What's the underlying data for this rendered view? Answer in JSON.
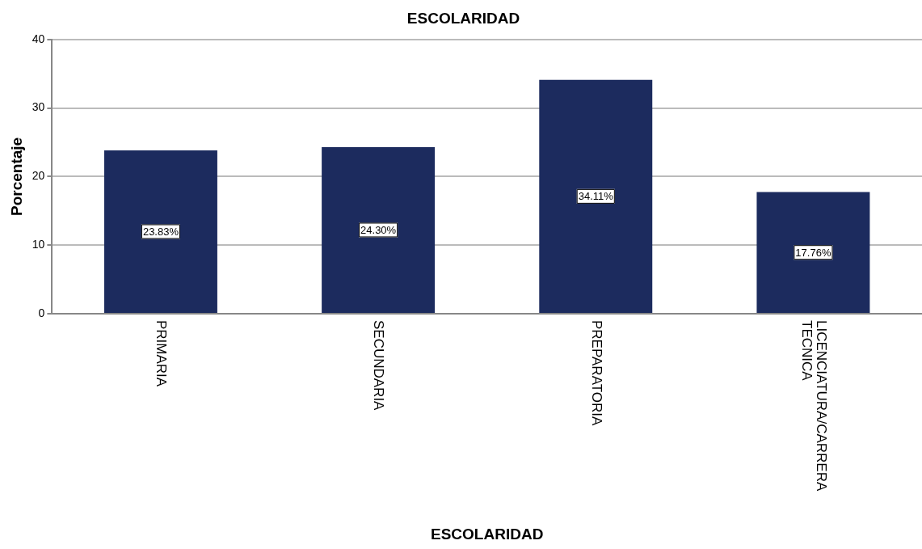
{
  "chart_data": {
    "type": "bar",
    "title": "ESCOLARIDAD",
    "xlabel": "ESCOLARIDAD",
    "ylabel": "Porcentaje",
    "categories": [
      "PRIMARIA",
      "SECUNDARIA",
      "PREPARATORIA",
      "LICENCIATURA/CARRERA TECNICA"
    ],
    "values": [
      23.83,
      24.3,
      34.11,
      17.76
    ],
    "value_labels": [
      "23.83%",
      "24.30%",
      "34.11%",
      "17.76%"
    ],
    "color": "#1c2b5e",
    "ylim": [
      0,
      40
    ],
    "yticks": [
      0,
      10,
      20,
      30,
      40
    ],
    "grid": "y",
    "legend": false
  }
}
